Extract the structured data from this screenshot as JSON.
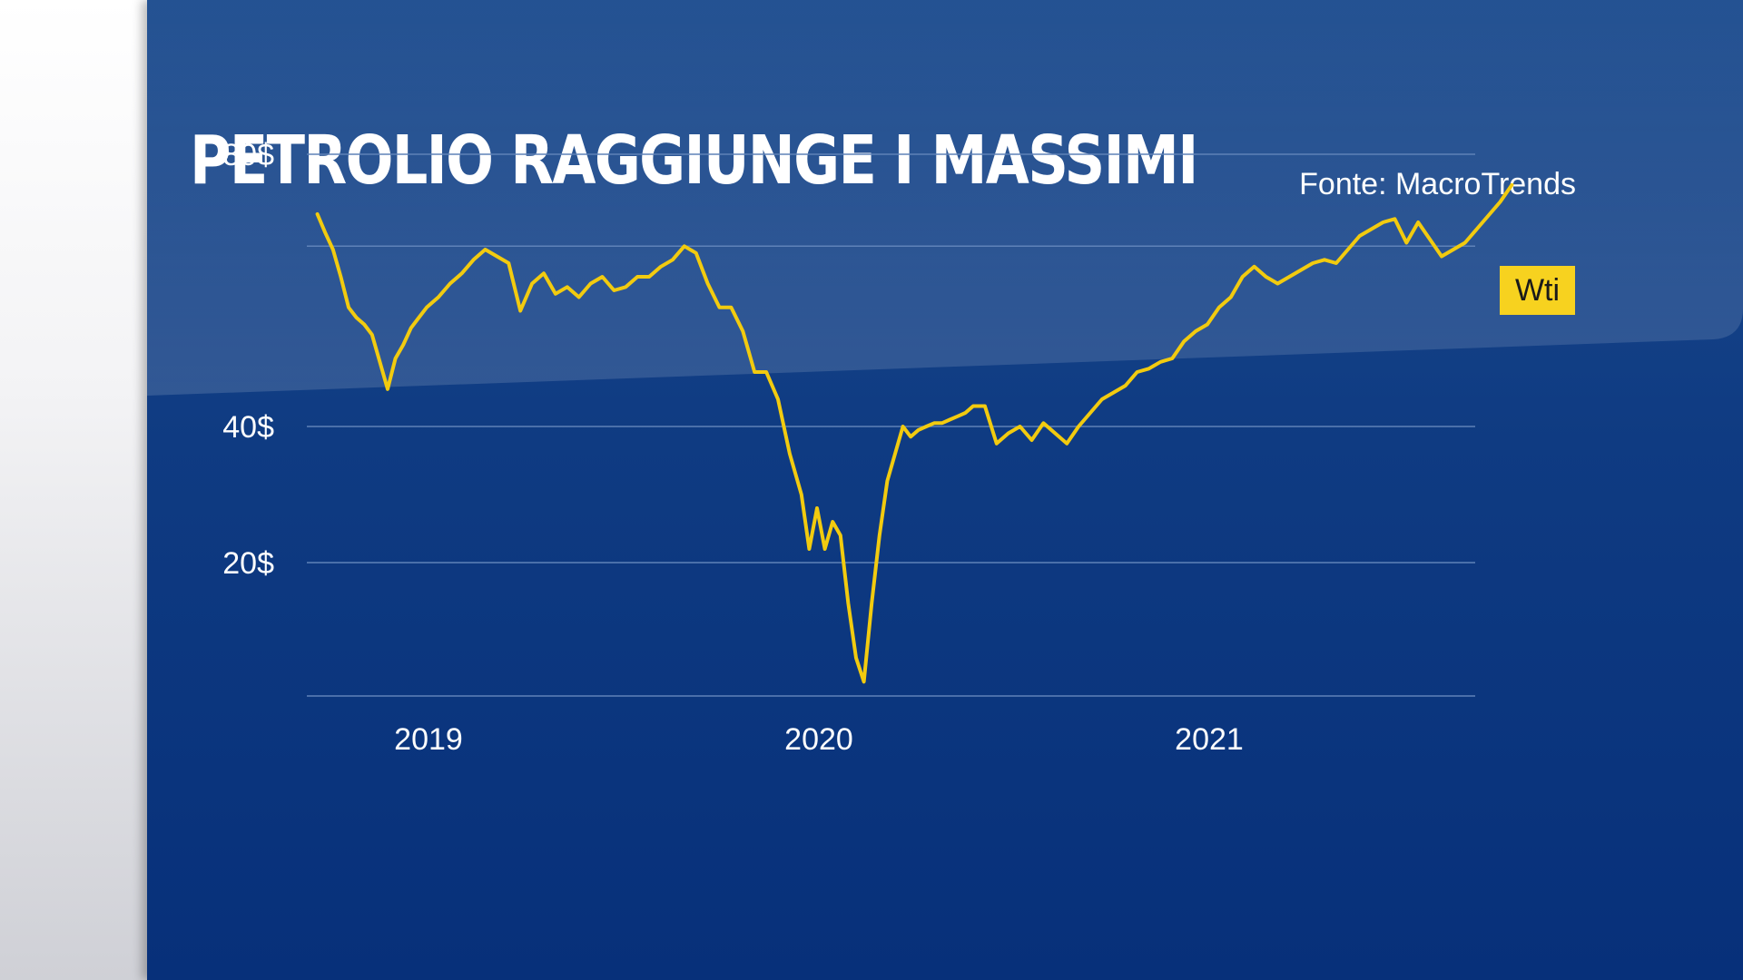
{
  "title": "PETROLIO RAGGIUNGE I MASSIMI",
  "source": "Fonte: MacroTrends",
  "colors": {
    "line": "#f2cb0f",
    "legend_bg": "#f7d21f",
    "background": "#0f3b82",
    "grid": "#5f82b8"
  },
  "chart_data": {
    "type": "line",
    "y_ticks": [
      {
        "value": 80,
        "label": "80$"
      },
      {
        "value": 40,
        "label": "40$"
      },
      {
        "value": 20,
        "label": "20$"
      }
    ],
    "x_ticks": [
      {
        "value": 2019.0,
        "label": "2019"
      },
      {
        "value": 2020.0,
        "label": "2020"
      },
      {
        "value": 2021.0,
        "label": "2021"
      }
    ],
    "grid": true,
    "legend_position": "top-right",
    "series": [
      {
        "name": "Wti",
        "x": [
          2018.72,
          2018.74,
          2018.76,
          2018.78,
          2018.8,
          2018.82,
          2018.84,
          2018.86,
          2018.88,
          2018.9,
          2018.92,
          2018.94,
          2018.96,
          2018.98,
          2019.0,
          2019.03,
          2019.06,
          2019.09,
          2019.12,
          2019.15,
          2019.18,
          2019.21,
          2019.24,
          2019.27,
          2019.3,
          2019.33,
          2019.36,
          2019.39,
          2019.42,
          2019.45,
          2019.48,
          2019.51,
          2019.54,
          2019.57,
          2019.6,
          2019.63,
          2019.66,
          2019.69,
          2019.72,
          2019.75,
          2019.78,
          2019.81,
          2019.84,
          2019.87,
          2019.9,
          2019.93,
          2019.96,
          2019.98,
          2020.0,
          2020.02,
          2020.04,
          2020.06,
          2020.08,
          2020.1,
          2020.12,
          2020.14,
          2020.16,
          2020.18,
          2020.2,
          2020.22,
          2020.24,
          2020.26,
          2020.28,
          2020.3,
          2020.32,
          2020.34,
          2020.36,
          2020.38,
          2020.4,
          2020.43,
          2020.46,
          2020.49,
          2020.52,
          2020.55,
          2020.58,
          2020.61,
          2020.64,
          2020.67,
          2020.7,
          2020.73,
          2020.76,
          2020.79,
          2020.82,
          2020.85,
          2020.88,
          2020.91,
          2020.94,
          2020.97,
          2021.0,
          2021.03,
          2021.06,
          2021.09,
          2021.12,
          2021.15,
          2021.18,
          2021.21,
          2021.24,
          2021.27,
          2021.3,
          2021.33,
          2021.36,
          2021.39,
          2021.42,
          2021.45,
          2021.48,
          2021.51,
          2021.54,
          2021.57,
          2021.6,
          2021.63,
          2021.66,
          2021.69,
          2021.72,
          2021.75,
          2021.78
        ],
        "y": [
          71.2,
          68.5,
          66.0,
          62.0,
          57.5,
          56.0,
          55.0,
          53.5,
          49.5,
          45.5,
          50.0,
          52.0,
          54.5,
          56.0,
          57.5,
          59.0,
          61.0,
          62.5,
          64.5,
          66.0,
          65.0,
          64.0,
          57.0,
          61.0,
          62.5,
          59.5,
          60.5,
          59.0,
          61.0,
          62.0,
          60.0,
          60.5,
          62.0,
          62.0,
          63.5,
          64.5,
          66.5,
          65.5,
          61.0,
          57.5,
          57.5,
          54.0,
          48.0,
          48.0,
          44.0,
          36.0,
          30.0,
          22.0,
          28.0,
          22.0,
          26.0,
          24.0,
          14.0,
          6.0,
          2.5,
          14.0,
          24.0,
          32.0,
          36.0,
          40.0,
          38.5,
          39.5,
          40.0,
          40.5,
          40.5,
          41.0,
          41.5,
          42.0,
          43.0,
          43.0,
          37.5,
          39.0,
          40.0,
          38.0,
          40.5,
          39.0,
          37.5,
          40.0,
          42.0,
          44.0,
          45.0,
          46.0,
          48.0,
          48.5,
          49.5,
          50.0,
          52.5,
          54.0,
          55.0,
          57.5,
          59.0,
          62.0,
          63.5,
          62.0,
          61.0,
          62.0,
          63.0,
          64.0,
          64.5,
          64.0,
          66.0,
          68.0,
          69.0,
          70.0,
          70.5,
          67.0,
          70.0,
          67.5,
          65.0,
          66.0,
          67.0,
          69.0,
          71.0,
          73.0,
          75.5
        ]
      }
    ]
  }
}
